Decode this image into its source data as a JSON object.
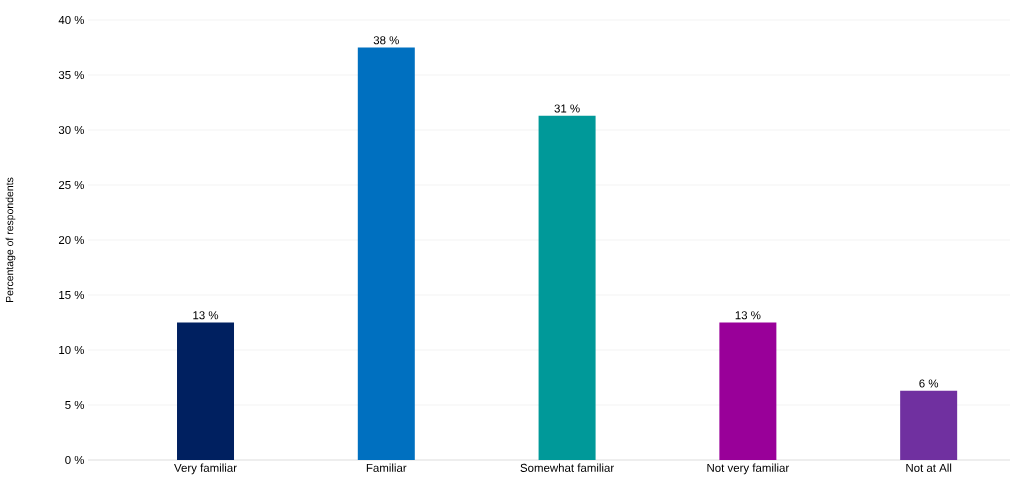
{
  "chart_data": {
    "type": "bar",
    "ylabel": "Percentage of respondents",
    "categories": [
      "Very familiar",
      "Familiar",
      "Somewhat familiar",
      "Not very familiar",
      "Not at All"
    ],
    "values": [
      12.5,
      37.5,
      31.3,
      12.5,
      6.3
    ],
    "colors": [
      "#002060",
      "#0070c0",
      "#009999",
      "#990099",
      "#7030a0"
    ],
    "value_labels": [
      "13 %",
      "38 %",
      "31 %",
      "13 %",
      "6 %"
    ],
    "ylim": [
      0,
      40
    ],
    "yticks": [
      {
        "value": 0,
        "label": "0 %"
      },
      {
        "value": 5,
        "label": "5 %"
      },
      {
        "value": 10,
        "label": "10 %"
      },
      {
        "value": 15,
        "label": "15 %"
      },
      {
        "value": 20,
        "label": "20 %"
      },
      {
        "value": 25,
        "label": "25 %"
      },
      {
        "value": 30,
        "label": "30 %"
      },
      {
        "value": 35,
        "label": "35 %"
      },
      {
        "value": 40,
        "label": "40 %"
      }
    ],
    "grid": "y"
  }
}
